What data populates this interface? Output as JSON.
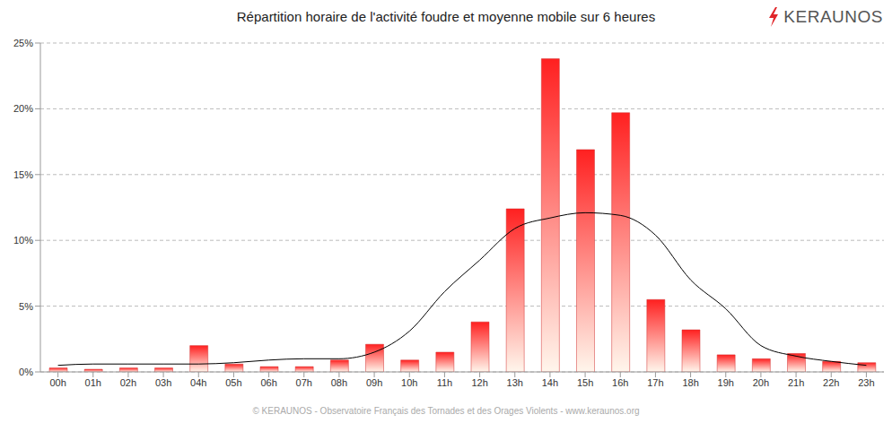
{
  "chart_data": {
    "type": "bar",
    "title": "Répartition horaire de l'activité foudre et moyenne mobile sur 6 heures",
    "logo": "KERAUNOS",
    "footer": "© KERAUNOS - Observatoire Français des Tornades et des Orages Violents - www.keraunos.org",
    "categories": [
      "00h",
      "01h",
      "02h",
      "03h",
      "04h",
      "05h",
      "06h",
      "07h",
      "08h",
      "09h",
      "10h",
      "11h",
      "12h",
      "13h",
      "14h",
      "15h",
      "16h",
      "17h",
      "18h",
      "19h",
      "20h",
      "21h",
      "22h",
      "23h"
    ],
    "series": [
      {
        "type": "bar",
        "color": "#ff2020",
        "values": [
          0.3,
          0.2,
          0.3,
          0.3,
          2.0,
          0.6,
          0.4,
          0.4,
          0.9,
          2.1,
          0.9,
          1.5,
          3.8,
          12.4,
          23.8,
          16.9,
          19.7,
          5.5,
          3.2,
          1.3,
          1.0,
          1.4,
          0.8,
          0.7
        ]
      },
      {
        "type": "line",
        "color": "#000000",
        "marker": "none",
        "line_style": "solid",
        "values": [
          0.5,
          0.6,
          0.6,
          0.6,
          0.6,
          0.7,
          0.9,
          1.0,
          1.0,
          1.5,
          3.1,
          6.1,
          8.5,
          10.9,
          11.7,
          12.1,
          11.9,
          10.4,
          7.0,
          4.8,
          2.0,
          1.2,
          0.8,
          0.5
        ]
      }
    ],
    "ylim": [
      0,
      25
    ],
    "yticks": [
      {
        "value": 0,
        "label": "0%"
      },
      {
        "value": 5,
        "label": "5%"
      },
      {
        "value": 10,
        "label": "10%"
      },
      {
        "value": 15,
        "label": "15%"
      },
      {
        "value": 20,
        "label": "20%"
      },
      {
        "value": 25,
        "label": "25%"
      }
    ],
    "grid": true
  }
}
